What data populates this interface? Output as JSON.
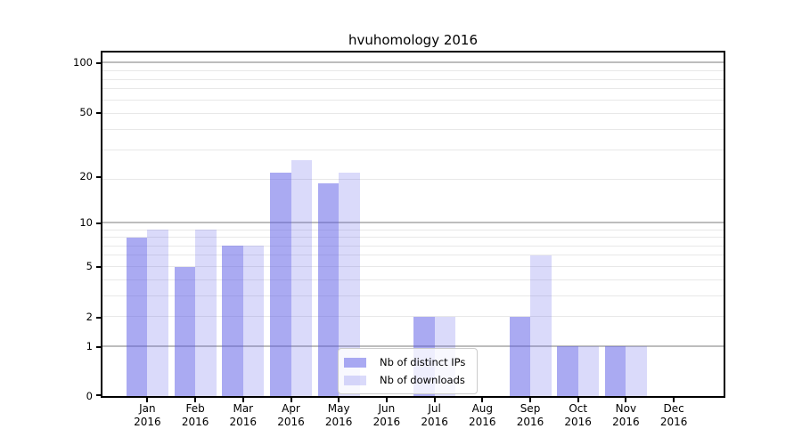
{
  "chart_data": {
    "type": "bar",
    "title": "hvuhomology 2016",
    "categories": [
      "Jan",
      "Feb",
      "Mar",
      "Apr",
      "May",
      "Jun",
      "Jul",
      "Aug",
      "Sep",
      "Oct",
      "Nov",
      "Dec"
    ],
    "year_label": "2016",
    "series": [
      {
        "name": "Nb of distinct IPs",
        "values": [
          8,
          5,
          7,
          21,
          18,
          0,
          2,
          0,
          2,
          1,
          1,
          0
        ],
        "color": "rgba(85,85,230,0.5)"
      },
      {
        "name": "Nb of downloads",
        "values": [
          9,
          9,
          7,
          25,
          21,
          0,
          2,
          0,
          6,
          1,
          1,
          0
        ],
        "color": "rgba(85,85,230,0.22)"
      }
    ],
    "xlabel": "",
    "ylabel": "",
    "yticks": [
      0,
      1,
      2,
      5,
      10,
      20,
      50,
      100
    ],
    "ylim": [
      0,
      114
    ],
    "yscale": "log10(1+y)",
    "grid": "horizontal major+minor",
    "legend_position": "inside lower-center",
    "colors": {
      "grid_major": "#bdbdbd",
      "grid_minor": "#e8e8e8",
      "axis": "#000000",
      "background": "#ffffff"
    }
  }
}
